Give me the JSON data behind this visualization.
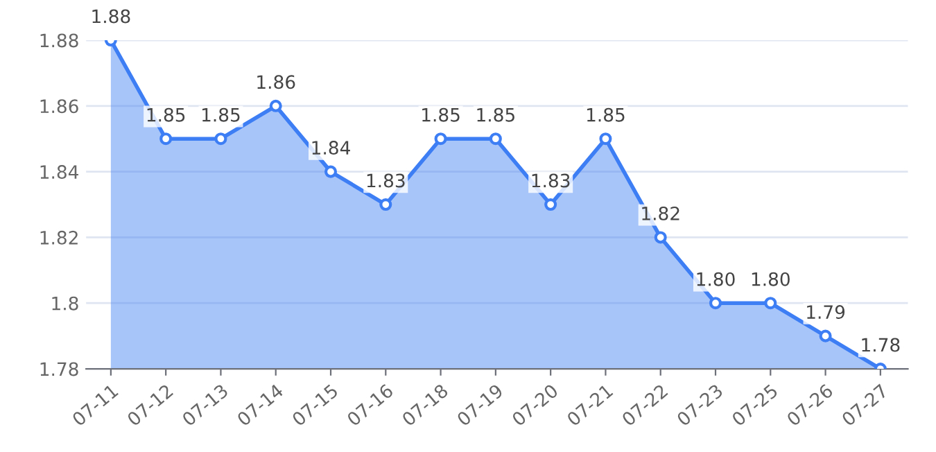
{
  "chart_data": {
    "type": "area",
    "categories": [
      "07-11",
      "07-12",
      "07-13",
      "07-14",
      "07-15",
      "07-16",
      "07-18",
      "07-19",
      "07-20",
      "07-21",
      "07-22",
      "07-23",
      "07-25",
      "07-26",
      "07-27"
    ],
    "series": [
      {
        "color": "#3d7ef5",
        "values": [
          1.88,
          1.85,
          1.85,
          1.86,
          1.84,
          1.83,
          1.85,
          1.85,
          1.83,
          1.85,
          1.82,
          1.8,
          1.8,
          1.79,
          1.78
        ],
        "value_labels": [
          "1.88",
          "1.85",
          "1.85",
          "1.86",
          "1.84",
          "1.83",
          "1.85",
          "1.85",
          "1.83",
          "1.85",
          "1.82",
          "1.80",
          "1.80",
          "1.79",
          "1.78"
        ]
      }
    ],
    "ylim": [
      1.78,
      1.88
    ],
    "yticks": [
      1.78,
      1.8,
      1.82,
      1.84,
      1.86,
      1.88
    ],
    "grid": "y",
    "marker": "circle",
    "legend": false
  }
}
